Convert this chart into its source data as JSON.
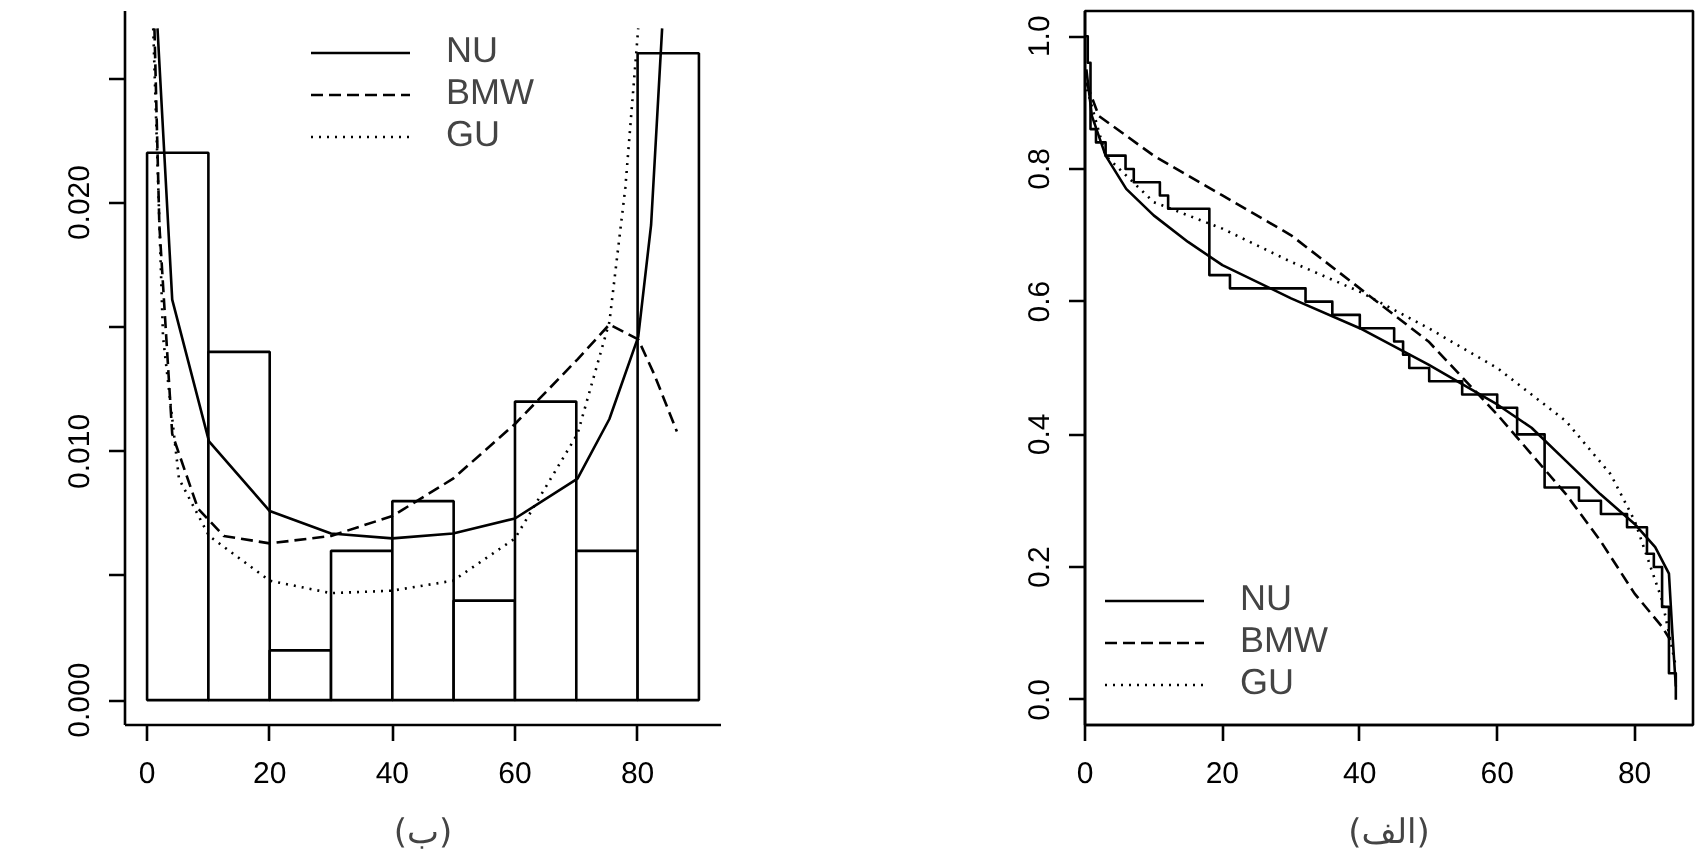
{
  "chart_data": [
    {
      "type": "histogram",
      "xlabel": "(ب)",
      "bins": [
        0,
        10,
        20,
        30,
        40,
        50,
        60,
        70,
        80,
        90
      ],
      "values": [
        0.022,
        0.014,
        0.002,
        0.006,
        0.008,
        0.004,
        0.012,
        0.006,
        0.026
      ],
      "xlim": [
        -3.6,
        93.6
      ],
      "ylim": [
        -0.001,
        0.0277
      ],
      "xticks": [
        0,
        20,
        40,
        60,
        80
      ],
      "yticks": [
        {
          "value": 0,
          "label": "0.000"
        },
        {
          "value": 0.005,
          "label": null
        },
        {
          "value": 0.01,
          "label": "0.010"
        },
        {
          "value": 0.015,
          "label": null
        },
        {
          "value": 0.02,
          "label": "0.020"
        },
        {
          "value": 0.025,
          "label": null
        }
      ],
      "grid": false,
      "legend": "top",
      "series": [
        {
          "name": "NU",
          "type": "line",
          "color": "#000000",
          "line_style": "solid",
          "x": [
            1.7,
            4.1,
            10.1,
            20,
            30,
            40,
            49.9,
            60,
            70.2,
            75.4,
            80.1,
            82.2,
            84
          ],
          "values": [
            0.027,
            0.0161,
            0.0104,
            0.0076,
            0.0067,
            0.0065,
            0.0067,
            0.0073,
            0.0089,
            0.0113,
            0.0146,
            0.0191,
            0.027
          ]
        },
        {
          "name": "BMW",
          "type": "line",
          "color": "#000000",
          "line_style": "dashed",
          "x": [
            1.2,
            2.0,
            4.1,
            8.3,
            12.5,
            20,
            30,
            40,
            49.9,
            60,
            70.2,
            75.4,
            80.1,
            82.7,
            86.4
          ],
          "values": [
            0.027,
            0.0191,
            0.0107,
            0.0077,
            0.0066,
            0.0063,
            0.0066,
            0.0074,
            0.0089,
            0.0111,
            0.0137,
            0.0151,
            0.0145,
            0.0131,
            0.0108
          ]
        },
        {
          "name": "GU",
          "type": "line",
          "color": "#000000",
          "line_style": "dotted",
          "x": [
            1,
            2.6,
            5.2,
            10.1,
            20,
            30,
            40,
            49.9,
            60,
            70.2,
            75.4,
            78,
            80.1
          ],
          "values": [
            0.027,
            0.0146,
            0.0089,
            0.0066,
            0.0048,
            0.0043,
            0.0044,
            0.0048,
            0.0065,
            0.0107,
            0.0152,
            0.0206,
            0.027
          ]
        }
      ]
    },
    {
      "type": "line",
      "xlabel": "(الف)",
      "xlim": [
        0,
        88.5
      ],
      "ylim": [
        -0.038,
        1.038
      ],
      "xticks": [
        0,
        20,
        40,
        60,
        80
      ],
      "yticks": [
        {
          "value": 0,
          "label": "0.0"
        },
        {
          "value": 0.2,
          "label": "0.2"
        },
        {
          "value": 0.4,
          "label": "0.4"
        },
        {
          "value": 0.6,
          "label": "0.6"
        },
        {
          "value": 0.8,
          "label": "0.8"
        },
        {
          "value": 1,
          "label": "1.0"
        }
      ],
      "grid": false,
      "legend": "bottom left",
      "series": [
        {
          "type": "step",
          "color": "#000000",
          "line_style": "solid",
          "x": [
            0,
            0.4,
            0.8,
            1.6,
            3.0,
            5.9,
            7.1,
            10.9,
            12.1,
            18.1,
            21.1,
            32.1,
            36,
            40,
            45,
            46.3,
            47.2,
            50.1,
            54.9,
            60,
            62.9,
            66.9,
            71.9,
            75.1,
            78.9,
            81.8,
            82.8,
            84,
            85,
            86
          ],
          "values": [
            1.0,
            0.96,
            0.86,
            0.84,
            0.82,
            0.8,
            0.78,
            0.76,
            0.74,
            0.64,
            0.62,
            0.6,
            0.58,
            0.56,
            0.54,
            0.52,
            0.5,
            0.48,
            0.46,
            0.44,
            0.4,
            0.32,
            0.3,
            0.28,
            0.26,
            0.22,
            0.2,
            0.14,
            0.04,
            0.0
          ]
        },
        {
          "name": "NU",
          "type": "line",
          "color": "#000000",
          "line_style": "solid",
          "x": [
            0.2,
            1,
            3,
            6,
            10,
            15,
            20,
            30,
            40,
            50,
            60,
            65,
            70,
            75,
            80,
            83,
            85,
            85.5,
            86
          ],
          "values": [
            0.95,
            0.88,
            0.82,
            0.77,
            0.73,
            0.69,
            0.655,
            0.605,
            0.56,
            0.505,
            0.445,
            0.41,
            0.36,
            0.31,
            0.265,
            0.23,
            0.19,
            0.1,
            0.02
          ]
        },
        {
          "name": "BMW",
          "type": "line",
          "color": "#000000",
          "line_style": "dashed",
          "x": [
            0.2,
            2,
            10,
            20,
            30,
            40,
            50,
            60,
            65,
            70,
            75,
            80,
            84,
            85.2
          ],
          "values": [
            0.93,
            0.88,
            0.82,
            0.76,
            0.7,
            0.62,
            0.54,
            0.43,
            0.37,
            0.31,
            0.24,
            0.16,
            0.11,
            0.09
          ]
        },
        {
          "name": "GU",
          "type": "line",
          "color": "#000000",
          "line_style": "dotted",
          "x": [
            0.3,
            3,
            10,
            20,
            30,
            40,
            50,
            60,
            70,
            76.5,
            80,
            84,
            86
          ],
          "values": [
            0.92,
            0.82,
            0.75,
            0.71,
            0.66,
            0.615,
            0.56,
            0.5,
            0.42,
            0.34,
            0.27,
            0.15,
            0.05
          ]
        }
      ]
    }
  ]
}
